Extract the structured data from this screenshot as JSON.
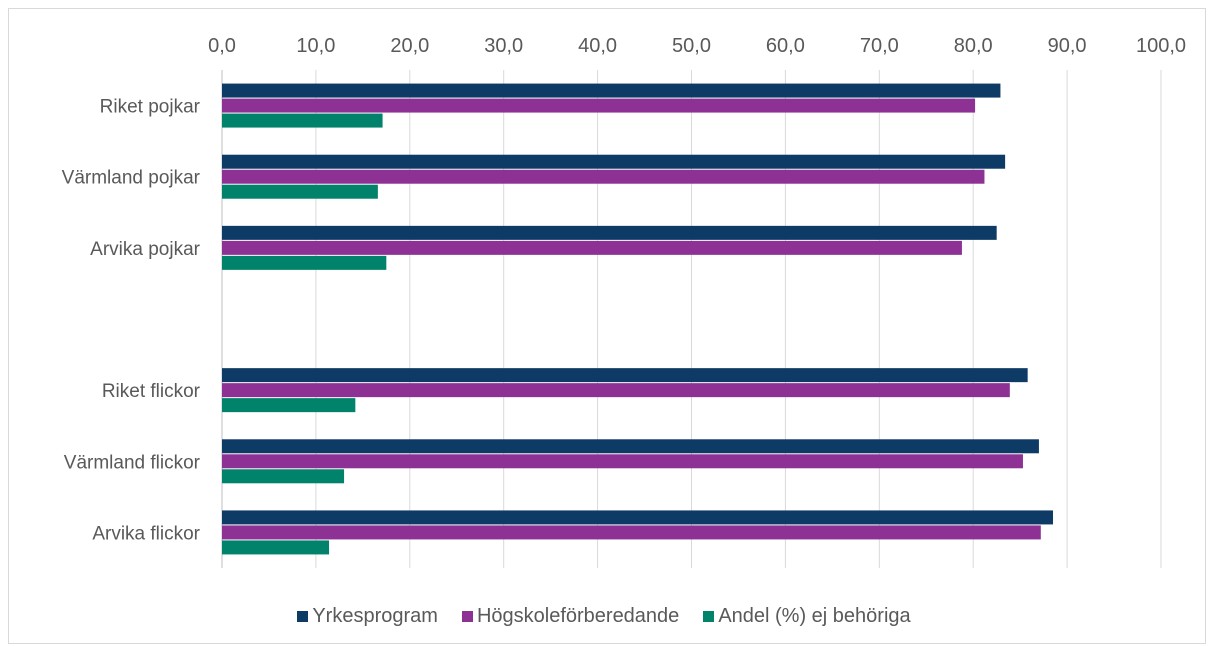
{
  "chart_data": {
    "type": "bar",
    "orientation": "horizontal",
    "categories": [
      "Riket pojkar",
      "Värmland pojkar",
      "Arvika pojkar",
      "",
      "Riket flickor",
      "Värmland flickor",
      "Arvika flickor"
    ],
    "series": [
      {
        "name": "Yrkesprogram",
        "color": "#0e3a66",
        "values": [
          82.9,
          83.4,
          82.5,
          null,
          85.8,
          87.0,
          88.5
        ]
      },
      {
        "name": "Högskoleförberedande",
        "color": "#8e3195",
        "values": [
          80.2,
          81.2,
          78.8,
          null,
          83.9,
          85.3,
          87.2
        ]
      },
      {
        "name": "Andel (%) ej behöriga",
        "color": "#00826b",
        "values": [
          17.1,
          16.6,
          17.5,
          null,
          14.2,
          13.0,
          11.4
        ]
      }
    ],
    "x_ticks": [
      "0,0",
      "10,0",
      "20,0",
      "30,0",
      "40,0",
      "50,0",
      "60,0",
      "70,0",
      "80,0",
      "90,0",
      "100,0"
    ],
    "xlim": [
      0,
      100
    ],
    "x_axis_position": "top",
    "grid": true,
    "legend_position": "bottom",
    "title": "",
    "xlabel": "",
    "ylabel": ""
  }
}
